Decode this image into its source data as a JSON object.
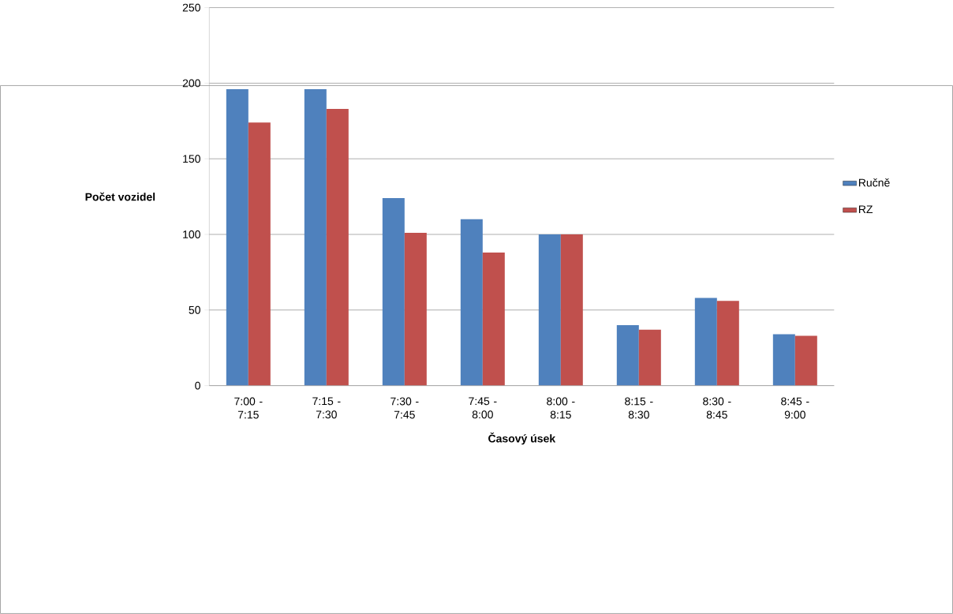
{
  "chart_data": {
    "type": "bar",
    "xlabel": "Časový úsek",
    "ylabel": "Počet vozidel",
    "categories": [
      "7:00 - 7:15",
      "7:15 - 7:30",
      "7:30 - 7:45",
      "7:45 - 8:00",
      "8:00 - 8:15",
      "8:15 - 8:30",
      "8:30 - 8:45",
      "8:45 - 9:00"
    ],
    "series": [
      {
        "name": "Ručně",
        "color": "#4f81bd",
        "values": [
          196,
          196,
          124,
          110,
          100,
          40,
          58,
          34
        ]
      },
      {
        "name": "RZ",
        "color": "#c0504d",
        "values": [
          174,
          183,
          101,
          88,
          100,
          37,
          56,
          33
        ]
      }
    ],
    "ylim": [
      0,
      250
    ],
    "yticks": [
      0,
      50,
      100,
      150,
      200,
      250
    ],
    "grid": "y",
    "legend": "right"
  }
}
